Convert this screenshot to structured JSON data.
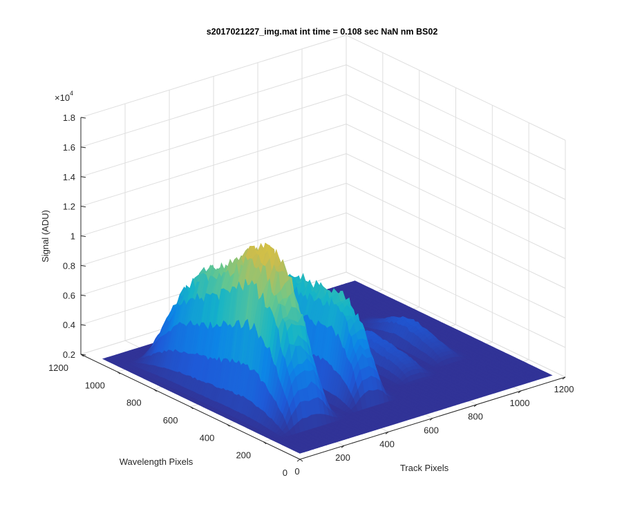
{
  "chart_data": {
    "type": "surface",
    "title": "s2017021227_img.mat int time = 0.108 sec  NaN nm BS02",
    "xlabel": "Track Pixels",
    "ylabel": "Wavelength Pixels",
    "zlabel": "Signal (ADU)",
    "z_exponent_label": "×10",
    "z_exponent_power": "4",
    "xlim": [
      0,
      1200
    ],
    "ylim": [
      0,
      1200
    ],
    "zlim": [
      2000,
      18000
    ],
    "x_ticks": [
      "0",
      "200",
      "400",
      "600",
      "800",
      "1000",
      "1200"
    ],
    "y_ticks": [
      "0",
      "200",
      "400",
      "600",
      "800",
      "1000",
      "1200"
    ],
    "z_ticks": [
      "0.2",
      "0.4",
      "0.6",
      "0.8",
      "1",
      "1.2",
      "1.4",
      "1.6",
      "1.8"
    ],
    "grid": true,
    "colormap": [
      "#352a87",
      "#1e5ad8",
      "#0d85e6",
      "#15b4c8",
      "#6cc88b",
      "#c9bc4f",
      "#f9d325"
    ],
    "peaks": [
      {
        "track_center": 180,
        "track_width": 95,
        "wavelength_range": [
          150,
          1000
        ],
        "peak_signal": 14000,
        "shoulder_signal": 12300
      },
      {
        "track_center": 470,
        "track_width": 70,
        "wavelength_range": [
          170,
          900
        ],
        "peak_signal": 10500,
        "shoulder_signal": 9500
      },
      {
        "track_center": 740,
        "track_width": 60,
        "wavelength_range": [
          250,
          750
        ],
        "peak_signal": 4200,
        "shoulder_signal": 3600
      },
      {
        "track_center": 930,
        "track_width": 55,
        "wavelength_range": [
          300,
          800
        ],
        "peak_signal": 4000,
        "shoulder_signal": 3400
      }
    ],
    "baseline_signal": 2400
  }
}
